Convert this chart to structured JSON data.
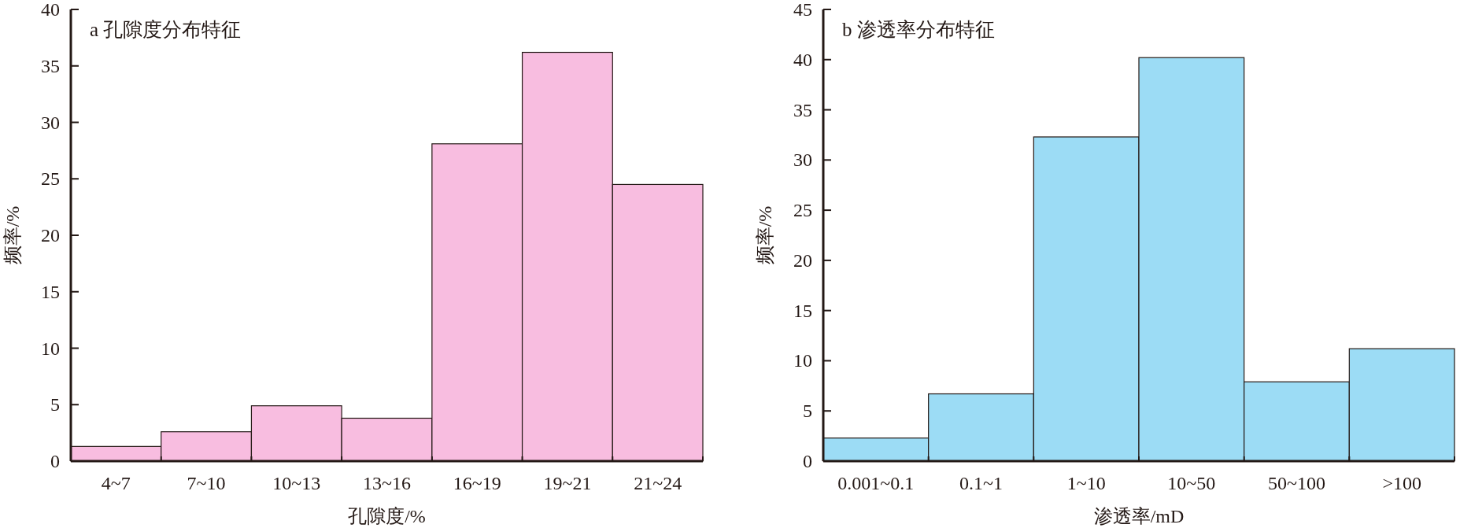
{
  "chart_data": [
    {
      "type": "bar",
      "title": "a 孔隙度分布特征",
      "xlabel": "孔隙度/%",
      "ylabel": "频率/%",
      "categories": [
        "4~7",
        "7~10",
        "10~13",
        "13~16",
        "16~19",
        "19~21",
        "21~24"
      ],
      "values": [
        1.3,
        2.6,
        4.9,
        3.8,
        28.1,
        36.2,
        24.5
      ],
      "color": "#f8bde0",
      "ylim": [
        0,
        40
      ],
      "yticks": [
        0,
        5,
        10,
        15,
        20,
        25,
        30,
        35,
        40
      ],
      "grid": false
    },
    {
      "type": "bar",
      "title": "b 渗透率分布特征",
      "xlabel": "渗透率/mD",
      "ylabel": "频率/%",
      "categories": [
        "0.001~0.1",
        "0.1~1",
        "1~10",
        "10~50",
        "50~100",
        ">100"
      ],
      "values": [
        2.3,
        6.7,
        32.3,
        40.2,
        7.9,
        11.2
      ],
      "color": "#9cdcf5",
      "ylim": [
        0,
        45
      ],
      "yticks": [
        0,
        5,
        10,
        15,
        20,
        25,
        30,
        35,
        40,
        45
      ],
      "grid": false
    }
  ]
}
